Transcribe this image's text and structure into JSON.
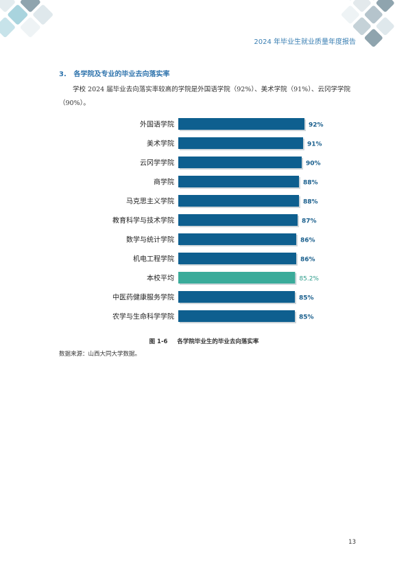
{
  "header": {
    "title": "2024 年毕业生就业质量年度报告"
  },
  "section": {
    "number": "3.",
    "title": "各学院及专业的毕业去向落实率"
  },
  "intro": "学校 2024 届毕业去向落实率较高的学院是外国语学院（92%）、美术学院（91%）、云冈学学院（90%）。",
  "chart_data": {
    "type": "bar",
    "orientation": "horizontal",
    "categories": [
      "外国语学院",
      "美术学院",
      "云冈学学院",
      "商学院",
      "马克思主义学院",
      "教育科学与技术学院",
      "数学与统计学院",
      "机电工程学院",
      "本校平均",
      "中医药健康服务学院",
      "农学与生命科学学院"
    ],
    "values": [
      92,
      91,
      90,
      88,
      88,
      87,
      86,
      86,
      85.2,
      85,
      85
    ],
    "value_labels": [
      "92%",
      "91%",
      "90%",
      "88%",
      "88%",
      "87%",
      "86%",
      "86%",
      "85.2%",
      "85%",
      "85%"
    ],
    "highlight_category": "本校平均",
    "colors": {
      "bar": "#0e5f8f",
      "highlight": "#3aab9a",
      "label": "#1a5f8d",
      "highlight_label": "#2e9d8c"
    },
    "xlim": [
      0,
      100
    ],
    "grid": false,
    "legend": "none"
  },
  "caption": {
    "figure": "图 1-6",
    "text": "各学院毕业生的毕业去向落实率"
  },
  "source": "数据来源：山西大同大学数据。",
  "page_number": "13"
}
